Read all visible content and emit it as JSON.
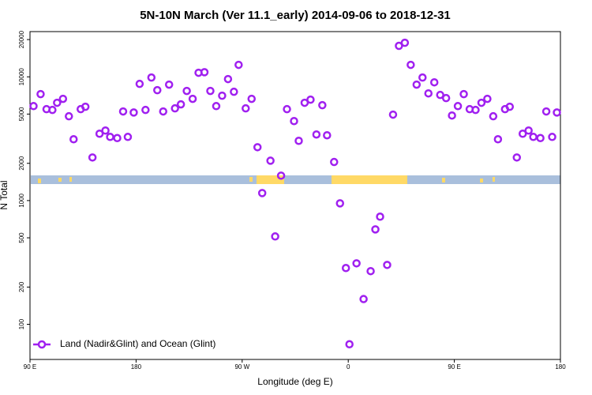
{
  "chart_data": {
    "type": "scatter",
    "title": "5N-10N March (Ver 11.1_early)   2014-09-06 to 2018-12-31",
    "x_label": "Longitude (deg E)",
    "y_label": "N Total",
    "log_y": true,
    "legend_position": "bottom-left",
    "xlim": [
      -270,
      180
    ],
    "xticks": [
      {
        "value": -270,
        "label": "90 E"
      },
      {
        "value": -180,
        "label": "180"
      },
      {
        "value": -90,
        "label": "90 W"
      },
      0,
      {
        "value": 90,
        "label": "90 E"
      },
      {
        "value": 180,
        "label": "180"
      }
    ],
    "ylim": [
      52,
      23200
    ],
    "yticks": [
      100,
      200,
      500,
      1000,
      2000,
      5000,
      10000,
      20000
    ],
    "series": [
      {
        "name": "Land (Nadir&Glint) and Ocean (Glint)",
        "color": "#a020f0",
        "x": [
          -267,
          -261,
          -256,
          -251,
          -247,
          -242,
          -237,
          -233,
          -227,
          -223,
          -217,
          -211,
          -206,
          -202,
          -196,
          -191,
          -187,
          -182,
          -177,
          -172,
          -167,
          -162,
          -157,
          -152,
          -147,
          -142,
          -137,
          -132,
          -127,
          -122,
          -117,
          -112,
          -107,
          -102,
          -97,
          -93,
          -87,
          -82,
          -77,
          -73,
          -66,
          -62,
          -57,
          -52,
          -46,
          -42,
          -37,
          -32,
          -27,
          -22,
          -18,
          -12,
          -7,
          -2,
          1,
          7,
          13,
          19,
          23,
          27,
          33,
          38,
          43,
          48,
          53,
          58,
          63,
          68,
          73,
          78,
          83,
          88,
          93,
          98,
          103,
          108,
          113,
          118,
          123,
          127,
          133,
          137,
          143,
          148,
          153,
          157,
          163,
          168,
          173,
          177
        ],
        "values": [
          5800,
          7250,
          5480,
          5400,
          6170,
          6640,
          4800,
          3130,
          5480,
          5730,
          2230,
          3470,
          3680,
          3270,
          3200,
          5250,
          3270,
          5150,
          8770,
          5400,
          9870,
          7800,
          5250,
          8650,
          5560,
          5990,
          7690,
          6640,
          10790,
          10900,
          7690,
          5800,
          7040,
          9590,
          7570,
          12500,
          5560,
          6640,
          2700,
          1150,
          2100,
          513,
          1590,
          5480,
          4390,
          3040,
          6170,
          6540,
          3420,
          5900,
          3370,
          2050,
          950,
          285,
          69,
          311,
          160,
          269,
          585,
          741,
          302,
          4950,
          17800,
          18850,
          12500,
          8650,
          9870,
          7350,
          9030,
          7140,
          6730,
          4870,
          5800,
          7250,
          5480,
          5400,
          6170,
          6640,
          4800,
          3130,
          5480,
          5730,
          2230,
          3470,
          3680,
          3270,
          3200,
          5250,
          3270,
          5150
        ]
      }
    ]
  }
}
